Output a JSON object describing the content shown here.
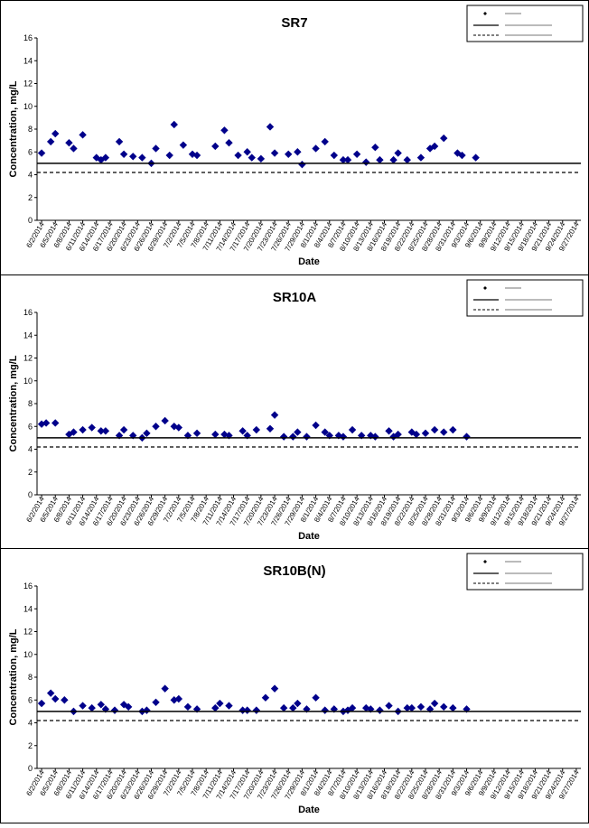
{
  "charts": {
    "chart_data": [
      {
        "type": "scatter",
        "title": "SR7",
        "xlabel": "Date",
        "ylabel": "Concentration, mg/L",
        "ylim": [
          0,
          16
        ],
        "yticks": [
          0,
          2,
          4,
          6,
          8,
          10,
          12,
          14,
          16
        ],
        "x_tick_labels": [
          "6/2/2014",
          "6/5/2014",
          "6/8/2014",
          "6/11/2014",
          "6/14/2014",
          "6/17/2014",
          "6/20/2014",
          "6/23/2014",
          "6/26/2014",
          "6/29/2014",
          "7/2/2014",
          "7/5/2014",
          "7/8/2014",
          "7/11/2014",
          "7/14/2014",
          "7/17/2014",
          "7/20/2014",
          "7/23/2014",
          "7/26/2014",
          "7/29/2014",
          "8/1/2014",
          "8/4/2014",
          "8/7/2014",
          "8/10/2014",
          "8/13/2014",
          "8/16/2014",
          "8/19/2014",
          "8/22/2014",
          "8/25/2014",
          "8/28/2014",
          "8/31/2014",
          "9/3/2014",
          "9/6/2014",
          "9/9/2014",
          "9/12/2014",
          "9/15/2014",
          "9/18/2014",
          "9/21/2014",
          "9/24/2014",
          "9/27/2014"
        ],
        "legend_position": "top-right",
        "grid": false,
        "series": [
          {
            "kind": "marker",
            "color": "#00008B",
            "points": [
              [
                "6/2/2014",
                5.9
              ],
              [
                "6/4/2014",
                6.9
              ],
              [
                "6/5/2014",
                7.6
              ],
              [
                "6/8/2014",
                6.8
              ],
              [
                "6/9/2014",
                6.3
              ],
              [
                "6/11/2014",
                7.5
              ],
              [
                "6/14/2014",
                5.5
              ],
              [
                "6/15/2014",
                5.3
              ],
              [
                "6/16/2014",
                5.5
              ],
              [
                "6/19/2014",
                6.9
              ],
              [
                "6/20/2014",
                5.8
              ],
              [
                "6/22/2014",
                5.6
              ],
              [
                "6/24/2014",
                5.5
              ],
              [
                "6/26/2014",
                5.0
              ],
              [
                "6/27/2014",
                6.3
              ],
              [
                "6/30/2014",
                5.7
              ],
              [
                "7/1/2014",
                8.4
              ],
              [
                "7/3/2014",
                6.6
              ],
              [
                "7/5/2014",
                5.8
              ],
              [
                "7/6/2014",
                5.7
              ],
              [
                "7/10/2014",
                6.5
              ],
              [
                "7/12/2014",
                7.9
              ],
              [
                "7/13/2014",
                6.8
              ],
              [
                "7/15/2014",
                5.7
              ],
              [
                "7/17/2014",
                6.0
              ],
              [
                "7/18/2014",
                5.5
              ],
              [
                "7/20/2014",
                5.4
              ],
              [
                "7/22/2014",
                8.2
              ],
              [
                "7/23/2014",
                5.9
              ],
              [
                "7/26/2014",
                5.8
              ],
              [
                "7/28/2014",
                6.0
              ],
              [
                "7/29/2014",
                4.9
              ],
              [
                "8/1/2014",
                6.3
              ],
              [
                "8/3/2014",
                6.9
              ],
              [
                "8/5/2014",
                5.7
              ],
              [
                "8/7/2014",
                5.3
              ],
              [
                "8/8/2014",
                5.3
              ],
              [
                "8/10/2014",
                5.8
              ],
              [
                "8/12/2014",
                5.1
              ],
              [
                "8/14/2014",
                6.4
              ],
              [
                "8/15/2014",
                5.3
              ],
              [
                "8/18/2014",
                5.3
              ],
              [
                "8/19/2014",
                5.9
              ],
              [
                "8/21/2014",
                5.3
              ],
              [
                "8/24/2014",
                5.5
              ],
              [
                "8/26/2014",
                6.3
              ],
              [
                "8/27/2014",
                6.5
              ],
              [
                "8/29/2014",
                7.2
              ],
              [
                "9/1/2014",
                5.9
              ],
              [
                "9/2/2014",
                5.7
              ],
              [
                "9/5/2014",
                5.5
              ]
            ]
          },
          {
            "kind": "solid-line",
            "y": 5.0
          },
          {
            "kind": "dashed-line",
            "y": 4.2
          }
        ]
      },
      {
        "type": "scatter",
        "title": "SR10A",
        "xlabel": "Date",
        "ylabel": "Concentration, mg/L",
        "ylim": [
          0,
          16
        ],
        "yticks": [
          0,
          2,
          4,
          6,
          8,
          10,
          12,
          14,
          16
        ],
        "x_tick_labels": [
          "6/2/2014",
          "6/5/2014",
          "6/8/2014",
          "6/11/2014",
          "6/14/2014",
          "6/17/2014",
          "6/20/2014",
          "6/23/2014",
          "6/26/2014",
          "6/29/2014",
          "7/2/2014",
          "7/5/2014",
          "7/8/2014",
          "7/11/2014",
          "7/14/2014",
          "7/17/2014",
          "7/20/2014",
          "7/23/2014",
          "7/26/2014",
          "7/29/2014",
          "8/1/2014",
          "8/4/2014",
          "8/7/2014",
          "8/10/2014",
          "8/13/2014",
          "8/16/2014",
          "8/19/2014",
          "8/22/2014",
          "8/25/2014",
          "8/28/2014",
          "8/31/2014",
          "9/3/2014",
          "9/6/2014",
          "9/9/2014",
          "9/12/2014",
          "9/15/2014",
          "9/18/2014",
          "9/21/2014",
          "9/24/2014",
          "9/27/2014"
        ],
        "legend_position": "top-right",
        "grid": false,
        "series": [
          {
            "kind": "marker",
            "color": "#00008B",
            "points": [
              [
                "6/2/2014",
                6.2
              ],
              [
                "6/3/2014",
                6.3
              ],
              [
                "6/5/2014",
                6.3
              ],
              [
                "6/8/2014",
                5.3
              ],
              [
                "6/9/2014",
                5.5
              ],
              [
                "6/11/2014",
                5.7
              ],
              [
                "6/13/2014",
                5.9
              ],
              [
                "6/15/2014",
                5.6
              ],
              [
                "6/16/2014",
                5.6
              ],
              [
                "6/19/2014",
                5.2
              ],
              [
                "6/20/2014",
                5.7
              ],
              [
                "6/22/2014",
                5.2
              ],
              [
                "6/24/2014",
                5.0
              ],
              [
                "6/25/2014",
                5.4
              ],
              [
                "6/27/2014",
                6.0
              ],
              [
                "6/29/2014",
                6.5
              ],
              [
                "7/1/2014",
                6.0
              ],
              [
                "7/2/2014",
                5.9
              ],
              [
                "7/4/2014",
                5.2
              ],
              [
                "7/6/2014",
                5.4
              ],
              [
                "7/10/2014",
                5.3
              ],
              [
                "7/12/2014",
                5.3
              ],
              [
                "7/13/2014",
                5.2
              ],
              [
                "7/16/2014",
                5.6
              ],
              [
                "7/17/2014",
                5.2
              ],
              [
                "7/19/2014",
                5.7
              ],
              [
                "7/22/2014",
                5.8
              ],
              [
                "7/23/2014",
                7.0
              ],
              [
                "7/25/2014",
                5.1
              ],
              [
                "7/27/2014",
                5.1
              ],
              [
                "7/28/2014",
                5.5
              ],
              [
                "7/30/2014",
                5.1
              ],
              [
                "8/1/2014",
                6.1
              ],
              [
                "8/3/2014",
                5.5
              ],
              [
                "8/4/2014",
                5.2
              ],
              [
                "8/6/2014",
                5.2
              ],
              [
                "8/7/2014",
                5.1
              ],
              [
                "8/9/2014",
                5.7
              ],
              [
                "8/11/2014",
                5.2
              ],
              [
                "8/13/2014",
                5.2
              ],
              [
                "8/14/2014",
                5.1
              ],
              [
                "8/17/2014",
                5.6
              ],
              [
                "8/18/2014",
                5.1
              ],
              [
                "8/19/2014",
                5.3
              ],
              [
                "8/22/2014",
                5.5
              ],
              [
                "8/23/2014",
                5.3
              ],
              [
                "8/25/2014",
                5.4
              ],
              [
                "8/27/2014",
                5.7
              ],
              [
                "8/29/2014",
                5.5
              ],
              [
                "8/31/2014",
                5.7
              ],
              [
                "9/3/2014",
                5.1
              ]
            ]
          },
          {
            "kind": "solid-line",
            "y": 5.0
          },
          {
            "kind": "dashed-line",
            "y": 4.2
          }
        ]
      },
      {
        "type": "scatter",
        "title": "SR10B(N)",
        "xlabel": "Date",
        "ylabel": "Concentration, mg/L",
        "ylim": [
          0,
          16
        ],
        "yticks": [
          0,
          2,
          4,
          6,
          8,
          10,
          12,
          14,
          16
        ],
        "x_tick_labels": [
          "6/2/2014",
          "6/5/2014",
          "6/8/2014",
          "6/11/2014",
          "6/14/2014",
          "6/17/2014",
          "6/20/2014",
          "6/23/2014",
          "6/26/2014",
          "6/29/2014",
          "7/2/2014",
          "7/5/2014",
          "7/8/2014",
          "7/11/2014",
          "7/14/2014",
          "7/17/2014",
          "7/20/2014",
          "7/23/2014",
          "7/26/2014",
          "7/29/2014",
          "8/1/2014",
          "8/4/2014",
          "8/7/2014",
          "8/10/2014",
          "8/13/2014",
          "8/16/2014",
          "8/19/2014",
          "8/22/2014",
          "8/25/2014",
          "8/28/2014",
          "8/31/2014",
          "9/3/2014",
          "9/6/2014",
          "9/9/2014",
          "9/12/2014",
          "9/15/2014",
          "9/18/2014",
          "9/21/2014",
          "9/24/2014",
          "9/27/2014"
        ],
        "legend_position": "top-right",
        "grid": false,
        "series": [
          {
            "kind": "marker",
            "color": "#00008B",
            "points": [
              [
                "6/2/2014",
                5.7
              ],
              [
                "6/4/2014",
                6.6
              ],
              [
                "6/5/2014",
                6.1
              ],
              [
                "6/7/2014",
                6.0
              ],
              [
                "6/9/2014",
                5.0
              ],
              [
                "6/11/2014",
                5.5
              ],
              [
                "6/13/2014",
                5.3
              ],
              [
                "6/15/2014",
                5.6
              ],
              [
                "6/16/2014",
                5.2
              ],
              [
                "6/18/2014",
                5.1
              ],
              [
                "6/20/2014",
                5.6
              ],
              [
                "6/21/2014",
                5.4
              ],
              [
                "6/24/2014",
                5.0
              ],
              [
                "6/25/2014",
                5.1
              ],
              [
                "6/27/2014",
                5.8
              ],
              [
                "6/29/2014",
                7.0
              ],
              [
                "7/1/2014",
                6.0
              ],
              [
                "7/2/2014",
                6.1
              ],
              [
                "7/4/2014",
                5.4
              ],
              [
                "7/6/2014",
                5.2
              ],
              [
                "7/10/2014",
                5.3
              ],
              [
                "7/11/2014",
                5.7
              ],
              [
                "7/13/2014",
                5.5
              ],
              [
                "7/16/2014",
                5.1
              ],
              [
                "7/17/2014",
                5.1
              ],
              [
                "7/19/2014",
                5.1
              ],
              [
                "7/21/2014",
                6.2
              ],
              [
                "7/23/2014",
                7.0
              ],
              [
                "7/25/2014",
                5.3
              ],
              [
                "7/27/2014",
                5.3
              ],
              [
                "7/28/2014",
                5.7
              ],
              [
                "7/30/2014",
                5.2
              ],
              [
                "8/1/2014",
                6.2
              ],
              [
                "8/3/2014",
                5.1
              ],
              [
                "8/5/2014",
                5.2
              ],
              [
                "8/7/2014",
                5.0
              ],
              [
                "8/8/2014",
                5.1
              ],
              [
                "8/9/2014",
                5.3
              ],
              [
                "8/12/2014",
                5.3
              ],
              [
                "8/13/2014",
                5.2
              ],
              [
                "8/15/2014",
                5.1
              ],
              [
                "8/17/2014",
                5.5
              ],
              [
                "8/19/2014",
                5.0
              ],
              [
                "8/21/2014",
                5.3
              ],
              [
                "8/22/2014",
                5.3
              ],
              [
                "8/24/2014",
                5.4
              ],
              [
                "8/26/2014",
                5.2
              ],
              [
                "8/27/2014",
                5.7
              ],
              [
                "8/29/2014",
                5.4
              ],
              [
                "8/31/2014",
                5.3
              ],
              [
                "9/3/2014",
                5.2
              ]
            ]
          },
          {
            "kind": "solid-line",
            "y": 5.0
          },
          {
            "kind": "dashed-line",
            "y": 4.2
          }
        ]
      }
    ]
  }
}
